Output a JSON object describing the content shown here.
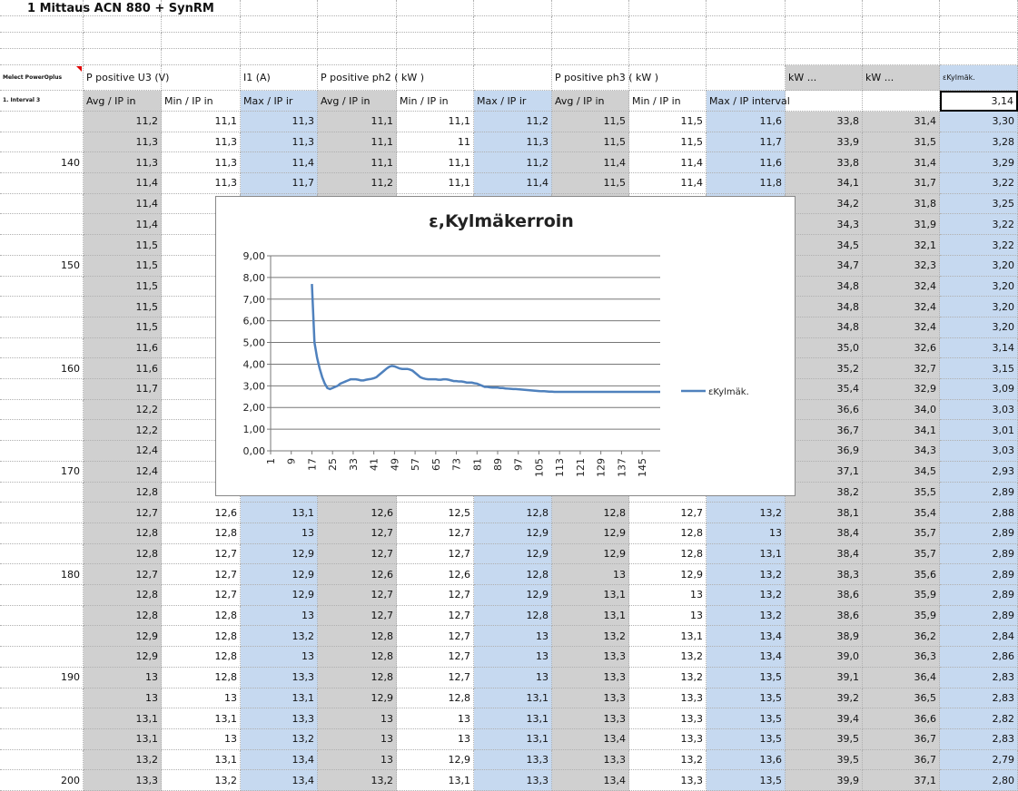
{
  "sheet": {
    "title": "1 Mittaus ACN 880 + SynRM",
    "header": [
      "Melect PowerOplus",
      "P positive U3 (V)",
      null,
      "I1 (A)",
      "P positive ph2 ( kW )",
      null,
      null,
      "P positive ph3 ( kW )",
      null,
      null,
      "kW ...",
      "kW ...",
      "εKylmäk."
    ],
    "subheader": [
      "1. Interval 3",
      "Avg / IP in",
      "Min / IP in",
      "Max / IP ir",
      "Avg / IP in",
      "Min / IP in",
      "Max / IP ir",
      "Avg / IP in",
      "Min / IP in",
      "Max / IP interval",
      null,
      null,
      "3,14"
    ],
    "rows": [
      {
        "label": null,
        "cells": [
          "11,2",
          "11,1",
          "11,3",
          "11,1",
          "11,1",
          "11,2",
          "11,5",
          "11,5",
          "11,6",
          "33,8",
          "31,4",
          "3,30"
        ]
      },
      {
        "label": null,
        "cells": [
          "11,3",
          "11,3",
          "11,3",
          "11,1",
          "11",
          "11,3",
          "11,5",
          "11,5",
          "11,7",
          "33,9",
          "31,5",
          "3,28"
        ]
      },
      {
        "label": "140",
        "cells": [
          "11,3",
          "11,3",
          "11,4",
          "11,1",
          "11,1",
          "11,2",
          "11,4",
          "11,4",
          "11,6",
          "33,8",
          "31,4",
          "3,29"
        ]
      },
      {
        "label": null,
        "cells": [
          "11,4",
          "11,3",
          "11,7",
          "11,2",
          "11,1",
          "11,4",
          "11,5",
          "11,4",
          "11,8",
          "34,1",
          "31,7",
          "3,22"
        ]
      },
      {
        "label": null,
        "cells": [
          "11,4",
          null,
          null,
          null,
          null,
          null,
          null,
          null,
          null,
          "34,2",
          "31,8",
          "3,25"
        ]
      },
      {
        "label": null,
        "cells": [
          "11,4",
          null,
          null,
          null,
          null,
          null,
          null,
          null,
          null,
          "34,3",
          "31,9",
          "3,22"
        ]
      },
      {
        "label": null,
        "cells": [
          "11,5",
          null,
          null,
          null,
          null,
          null,
          null,
          null,
          null,
          "34,5",
          "32,1",
          "3,22"
        ]
      },
      {
        "label": "150",
        "cells": [
          "11,5",
          null,
          null,
          null,
          null,
          null,
          null,
          null,
          null,
          "34,7",
          "32,3",
          "3,20"
        ]
      },
      {
        "label": null,
        "cells": [
          "11,5",
          null,
          null,
          null,
          null,
          null,
          null,
          null,
          null,
          "34,8",
          "32,4",
          "3,20"
        ]
      },
      {
        "label": null,
        "cells": [
          "11,5",
          null,
          null,
          null,
          null,
          null,
          null,
          null,
          null,
          "34,8",
          "32,4",
          "3,20"
        ]
      },
      {
        "label": null,
        "cells": [
          "11,5",
          null,
          null,
          null,
          null,
          null,
          null,
          null,
          null,
          "34,8",
          "32,4",
          "3,20"
        ]
      },
      {
        "label": null,
        "cells": [
          "11,6",
          null,
          null,
          null,
          null,
          null,
          null,
          null,
          null,
          "35,0",
          "32,6",
          "3,14"
        ]
      },
      {
        "label": "160",
        "cells": [
          "11,6",
          null,
          null,
          null,
          null,
          null,
          null,
          null,
          null,
          "35,2",
          "32,7",
          "3,15"
        ]
      },
      {
        "label": null,
        "cells": [
          "11,7",
          null,
          null,
          null,
          null,
          null,
          null,
          null,
          null,
          "35,4",
          "32,9",
          "3,09"
        ]
      },
      {
        "label": null,
        "cells": [
          "12,2",
          null,
          null,
          null,
          null,
          null,
          null,
          null,
          null,
          "36,6",
          "34,0",
          "3,03"
        ]
      },
      {
        "label": null,
        "cells": [
          "12,2",
          null,
          null,
          null,
          null,
          null,
          null,
          null,
          null,
          "36,7",
          "34,1",
          "3,01"
        ]
      },
      {
        "label": null,
        "cells": [
          "12,4",
          null,
          null,
          null,
          null,
          null,
          null,
          null,
          null,
          "36,9",
          "34,3",
          "3,03"
        ]
      },
      {
        "label": "170",
        "cells": [
          "12,4",
          null,
          null,
          null,
          null,
          null,
          null,
          null,
          null,
          "37,1",
          "34,5",
          "2,93"
        ]
      },
      {
        "label": null,
        "cells": [
          "12,8",
          "12,7",
          "13",
          "12,6",
          "12,5",
          "13",
          "12,8",
          "12,6",
          "13",
          "38,2",
          "35,5",
          "2,89"
        ]
      },
      {
        "label": null,
        "cells": [
          "12,7",
          "12,6",
          "13,1",
          "12,6",
          "12,5",
          "12,8",
          "12,8",
          "12,7",
          "13,2",
          "38,1",
          "35,4",
          "2,88"
        ]
      },
      {
        "label": null,
        "cells": [
          "12,8",
          "12,8",
          "13",
          "12,7",
          "12,7",
          "12,9",
          "12,9",
          "12,8",
          "13",
          "38,4",
          "35,7",
          "2,89"
        ]
      },
      {
        "label": null,
        "cells": [
          "12,8",
          "12,7",
          "12,9",
          "12,7",
          "12,7",
          "12,9",
          "12,9",
          "12,8",
          "13,1",
          "38,4",
          "35,7",
          "2,89"
        ]
      },
      {
        "label": "180",
        "cells": [
          "12,7",
          "12,7",
          "12,9",
          "12,6",
          "12,6",
          "12,8",
          "13",
          "12,9",
          "13,2",
          "38,3",
          "35,6",
          "2,89"
        ]
      },
      {
        "label": null,
        "cells": [
          "12,8",
          "12,7",
          "12,9",
          "12,7",
          "12,7",
          "12,9",
          "13,1",
          "13",
          "13,2",
          "38,6",
          "35,9",
          "2,89"
        ]
      },
      {
        "label": null,
        "cells": [
          "12,8",
          "12,8",
          "13",
          "12,7",
          "12,7",
          "12,8",
          "13,1",
          "13",
          "13,2",
          "38,6",
          "35,9",
          "2,89"
        ]
      },
      {
        "label": null,
        "cells": [
          "12,9",
          "12,8",
          "13,2",
          "12,8",
          "12,7",
          "13",
          "13,2",
          "13,1",
          "13,4",
          "38,9",
          "36,2",
          "2,84"
        ]
      },
      {
        "label": null,
        "cells": [
          "12,9",
          "12,8",
          "13",
          "12,8",
          "12,7",
          "13",
          "13,3",
          "13,2",
          "13,4",
          "39,0",
          "36,3",
          "2,86"
        ]
      },
      {
        "label": "190",
        "cells": [
          "13",
          "12,8",
          "13,3",
          "12,8",
          "12,7",
          "13",
          "13,3",
          "13,2",
          "13,5",
          "39,1",
          "36,4",
          "2,83"
        ]
      },
      {
        "label": null,
        "cells": [
          "13",
          "13",
          "13,1",
          "12,9",
          "12,8",
          "13,1",
          "13,3",
          "13,3",
          "13,5",
          "39,2",
          "36,5",
          "2,83"
        ]
      },
      {
        "label": null,
        "cells": [
          "13,1",
          "13,1",
          "13,3",
          "13",
          "13",
          "13,1",
          "13,3",
          "13,3",
          "13,5",
          "39,4",
          "36,6",
          "2,82"
        ]
      },
      {
        "label": null,
        "cells": [
          "13,1",
          "13",
          "13,2",
          "13",
          "13",
          "13,1",
          "13,4",
          "13,3",
          "13,5",
          "39,5",
          "36,7",
          "2,83"
        ]
      },
      {
        "label": null,
        "cells": [
          "13,2",
          "13,1",
          "13,4",
          "13",
          "12,9",
          "13,3",
          "13,3",
          "13,2",
          "13,6",
          "39,5",
          "36,7",
          "2,79"
        ]
      },
      {
        "label": "200",
        "cells": [
          "13,3",
          "13,2",
          "13,4",
          "13,2",
          "13,1",
          "13,3",
          "13,4",
          "13,3",
          "13,5",
          "39,9",
          "37,1",
          "2,80"
        ]
      }
    ]
  },
  "chart": {
    "type": "line",
    "title": "ε,Kylmäkerroin",
    "x": [
      1,
      2,
      3,
      4,
      5,
      6,
      7,
      8,
      9,
      10,
      11,
      12,
      13,
      14,
      15,
      16,
      17,
      18,
      19,
      20,
      21,
      22,
      23,
      24,
      25,
      26,
      27,
      28,
      29,
      30,
      31,
      32,
      33,
      34,
      35,
      36,
      37,
      38,
      39,
      40,
      41,
      42,
      43,
      44,
      45,
      46,
      47,
      48,
      49,
      50,
      51,
      52,
      53,
      54,
      55,
      56,
      57,
      58,
      59,
      60,
      61,
      62,
      63,
      64,
      65,
      66,
      67,
      68,
      69,
      70,
      71,
      72,
      73,
      74,
      75,
      76,
      77,
      78,
      79,
      80,
      81,
      82,
      83,
      84,
      85,
      86,
      87,
      88,
      89,
      90,
      91,
      92,
      93,
      94,
      95,
      96,
      97,
      98,
      99,
      100,
      101,
      102,
      103,
      104,
      105,
      106,
      107,
      108,
      109,
      110,
      111,
      112,
      113,
      114,
      115,
      116,
      117,
      118,
      119,
      120,
      121,
      122,
      123,
      124,
      125,
      126,
      127,
      128,
      129,
      130,
      131,
      132,
      133,
      134,
      135,
      136,
      137,
      138,
      139,
      140,
      141,
      142,
      143,
      144,
      145,
      146,
      147,
      148,
      149,
      150,
      151,
      152
    ],
    "xlim": [
      1,
      152
    ],
    "xticks": [
      1,
      9,
      17,
      25,
      33,
      41,
      49,
      57,
      65,
      73,
      81,
      89,
      97,
      105,
      113,
      121,
      129,
      137,
      145
    ],
    "ylim": [
      0,
      9
    ],
    "yticks": [
      {
        "value": 0,
        "label": "0,00"
      },
      {
        "value": 1,
        "label": "1,00"
      },
      {
        "value": 2,
        "label": "2,00"
      },
      {
        "value": 3,
        "label": "3,00"
      },
      {
        "value": 4,
        "label": "4,00"
      },
      {
        "value": 5,
        "label": "5,00"
      },
      {
        "value": 6,
        "label": "6,00"
      },
      {
        "value": 7,
        "label": "7,00"
      },
      {
        "value": 8,
        "label": "8,00"
      },
      {
        "value": 9,
        "label": "9,00"
      }
    ],
    "grid": true,
    "legend": "right",
    "series": [
      {
        "name": "εKylmäk.",
        "color": "#4f81bd",
        "values": [
          null,
          null,
          null,
          null,
          null,
          null,
          null,
          null,
          null,
          null,
          null,
          null,
          null,
          null,
          null,
          null,
          7.7,
          5.0,
          4.3,
          3.8,
          3.4,
          3.1,
          2.9,
          2.85,
          2.9,
          2.95,
          3.0,
          3.1,
          3.15,
          3.2,
          3.25,
          3.3,
          3.3,
          3.3,
          3.28,
          3.25,
          3.25,
          3.28,
          3.3,
          3.32,
          3.35,
          3.4,
          3.5,
          3.6,
          3.7,
          3.8,
          3.88,
          3.92,
          3.9,
          3.85,
          3.8,
          3.78,
          3.78,
          3.78,
          3.75,
          3.7,
          3.6,
          3.5,
          3.4,
          3.35,
          3.32,
          3.3,
          3.3,
          3.3,
          3.3,
          3.28,
          3.28,
          3.3,
          3.3,
          3.28,
          3.25,
          3.22,
          3.22,
          3.2,
          3.2,
          3.18,
          3.15,
          3.15,
          3.15,
          3.12,
          3.1,
          3.05,
          3.0,
          2.95,
          2.95,
          2.93,
          2.92,
          2.92,
          2.92,
          2.9,
          2.9,
          2.88,
          2.87,
          2.86,
          2.85,
          2.85,
          2.84,
          2.83,
          2.82,
          2.81,
          2.8,
          2.79,
          2.78,
          2.77,
          2.76,
          2.75,
          2.75,
          2.74,
          2.73,
          2.73,
          2.72,
          2.72,
          2.72,
          2.72,
          2.72,
          2.72,
          2.72,
          2.72,
          2.72,
          2.72,
          2.72,
          2.72,
          2.72,
          2.72,
          2.72,
          2.72,
          2.72,
          2.72,
          2.72,
          2.72,
          2.72,
          2.72,
          2.72,
          2.72,
          2.72,
          2.72,
          2.72,
          2.72,
          2.72,
          2.72,
          2.72,
          2.72,
          2.72,
          2.72,
          2.72,
          2.72,
          2.72,
          2.72,
          2.72,
          2.72,
          2.72,
          2.72
        ]
      }
    ]
  }
}
